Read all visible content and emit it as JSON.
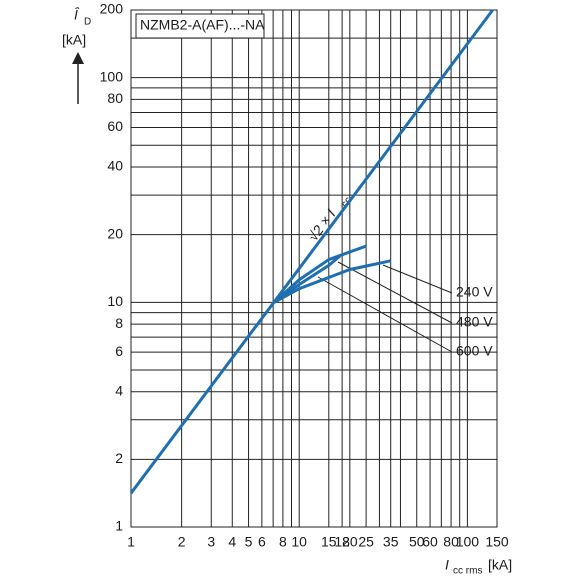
{
  "chart_data": {
    "type": "line",
    "title": "NZMB2-A(AF)...-NA",
    "y_label": {
      "symbol": "Î",
      "sub": "D",
      "unit": "[kA]"
    },
    "x_label": {
      "symbol": "I",
      "sub": "cc rms",
      "unit": "[kA]"
    },
    "line_label": {
      "text": "√2 × I",
      "sub": "cc"
    },
    "log_x": true,
    "log_y": true,
    "grid": true,
    "xlim": [
      1,
      150
    ],
    "ylim": [
      1,
      200
    ],
    "xticks": [
      1,
      2,
      3,
      4,
      5,
      6,
      8,
      10,
      15,
      18,
      20,
      25,
      35,
      50,
      60,
      80,
      100,
      150
    ],
    "yticks": [
      1,
      2,
      4,
      6,
      8,
      10,
      20,
      40,
      60,
      80,
      100,
      200
    ],
    "x_minor_grid": [
      7,
      9,
      30,
      40,
      70,
      90
    ],
    "y_minor_grid": [
      3,
      5,
      7,
      9,
      30,
      50,
      70,
      90,
      150
    ],
    "series": [
      {
        "name": "240 V",
        "color": "#1f6fb0",
        "x": [
          7.1,
          10,
          20,
          35
        ],
        "y": [
          10,
          11.5,
          14,
          15.3
        ]
      },
      {
        "name": "480 V",
        "color": "#1f6fb0",
        "x": [
          7.1,
          10,
          15,
          25
        ],
        "y": [
          10,
          12.6,
          15.5,
          17.8
        ]
      },
      {
        "name": "600 V",
        "color": "#1f6fb0",
        "x": [
          7.1,
          10,
          15,
          17.5
        ],
        "y": [
          10,
          12,
          14.6,
          16.1
        ]
      },
      {
        "color": "#1f6fb0",
        "x": [
          1,
          141.4
        ],
        "y": [
          1.414,
          200
        ]
      }
    ]
  }
}
